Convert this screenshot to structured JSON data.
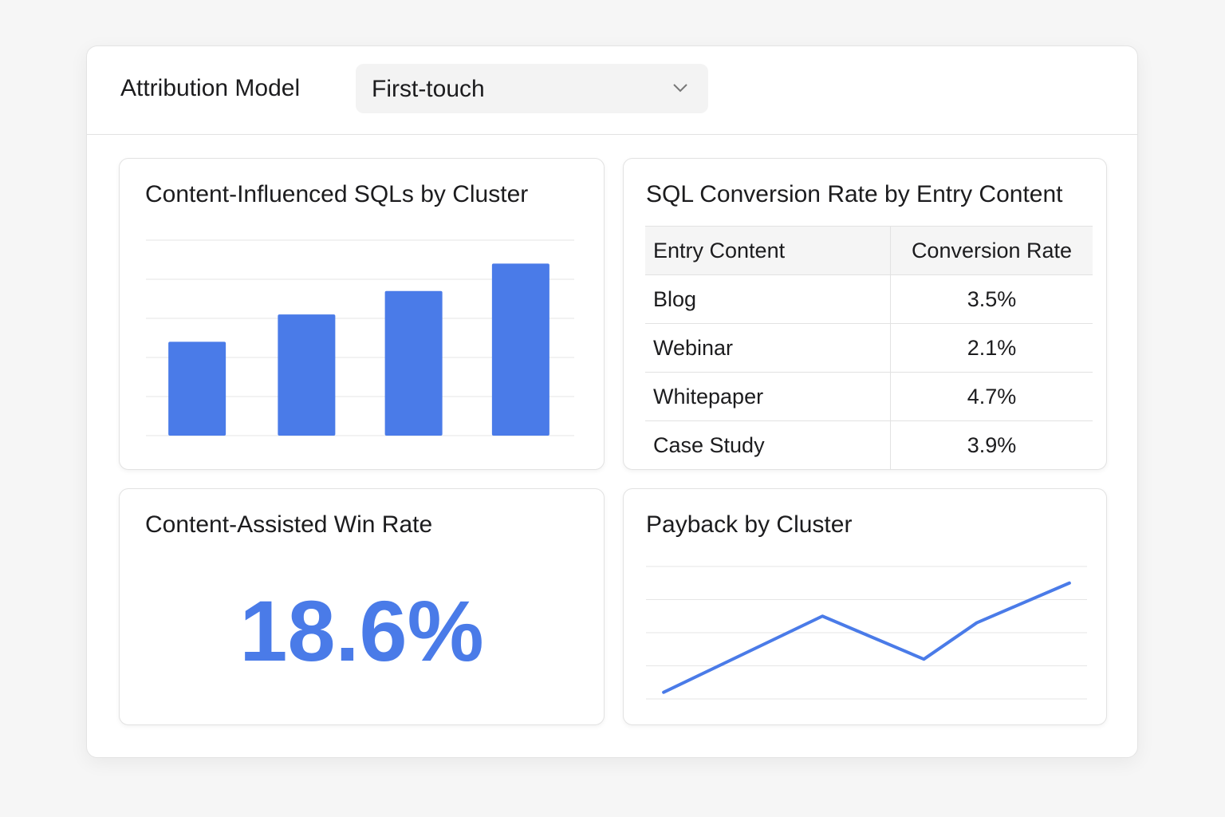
{
  "header": {
    "label": "Attribution Model",
    "dropdown_value": "First-touch",
    "dropdown_icon": "chevron-down-icon"
  },
  "colors": {
    "accent": "#4a7be8",
    "gridline": "#e6e6e6"
  },
  "chart_data": [
    {
      "type": "bar",
      "title": "Content-Influenced SQLs by Cluster",
      "categories": [
        "",
        "",
        "",
        ""
      ],
      "values": [
        2.4,
        3.1,
        3.7,
        4.4
      ],
      "ylim": [
        0,
        5
      ],
      "grid": true,
      "xlabel": "",
      "ylabel": ""
    },
    {
      "type": "table",
      "title": "SQL Conversion Rate by Entry Content",
      "columns": [
        "Entry Content",
        "Conversion Rate"
      ],
      "rows": [
        [
          "Blog",
          "3.5%"
        ],
        [
          "Webinar",
          "2.1%"
        ],
        [
          "Whitepaper",
          "4.7%"
        ],
        [
          "Case Study",
          "3.9%"
        ]
      ]
    },
    {
      "type": "line",
      "title": "Payback by Cluster",
      "x": [
        0.4,
        4.0,
        6.3,
        7.5,
        9.6
      ],
      "y": [
        0.2,
        2.5,
        1.2,
        2.3,
        3.5
      ],
      "xlim": [
        0,
        10
      ],
      "ylim": [
        0,
        4
      ],
      "grid": true,
      "xlabel": "",
      "ylabel": ""
    }
  ],
  "kpi": {
    "title": "Content-Assisted Win Rate",
    "value": "18.6%"
  }
}
